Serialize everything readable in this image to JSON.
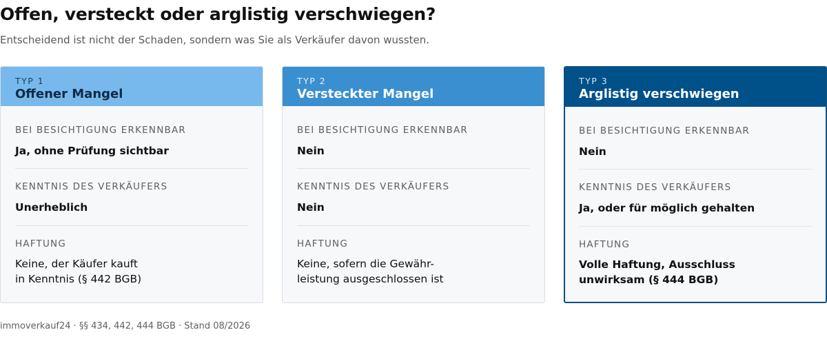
{
  "header": {
    "title": "Offen, versteckt oder arglistig verschwiegen?",
    "subtitle": "Entscheidend ist nicht der Schaden, sondern was Sie als Verkäufer davon wussten."
  },
  "cards": [
    {
      "type_label": "TYP 1",
      "name": "Offener Mangel",
      "rows": [
        {
          "label": "BEI BESICHTIGUNG ERKENNBAR",
          "value": "Ja, ohne Prüfung sichtbar"
        },
        {
          "label": "KENNTNIS DES VERKÄUFERS",
          "value": "Unerheblich"
        },
        {
          "label": "HAFTUNG",
          "value": "Keine, der Käufer kauft\nin Kenntnis (§ 442 BGB)"
        }
      ]
    },
    {
      "type_label": "TYP 2",
      "name": "Versteckter Mangel",
      "rows": [
        {
          "label": "BEI BESICHTIGUNG ERKENNBAR",
          "value": "Nein"
        },
        {
          "label": "KENNTNIS DES VERKÄUFERS",
          "value": "Nein"
        },
        {
          "label": "HAFTUNG",
          "value": "Keine, sofern die Gewähr-\nleistung ausgeschlossen ist"
        }
      ]
    },
    {
      "type_label": "TYP 3",
      "name": "Arglistig verschwiegen",
      "rows": [
        {
          "label": "BEI BESICHTIGUNG ERKENNBAR",
          "value": "Nein"
        },
        {
          "label": "KENNTNIS DES VERKÄUFERS",
          "value": "Ja, oder für möglich gehalten"
        },
        {
          "label": "HAFTUNG",
          "value": "Volle Haftung, Ausschluss\nunwirksam (§ 444 BGB)"
        }
      ]
    }
  ],
  "footer": {
    "source": "immoverkauf24 · §§ 434, 442, 444 BGB · Stand 08/2026"
  },
  "colors": {
    "typ1_header": "#77b9ec",
    "typ2_header": "#3a8fd0",
    "typ3_header": "#00508a",
    "typ3_border": "#0b4f85"
  }
}
